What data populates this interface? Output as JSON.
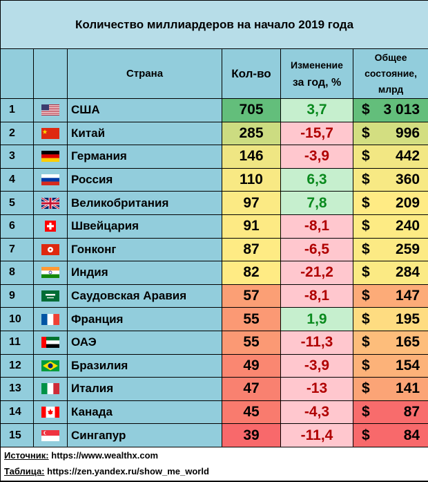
{
  "chart_data": {
    "type": "table",
    "title": "Количество миллиардеров на начало 2019 года",
    "columns": {
      "country": "Страна",
      "count": "Кол-во",
      "change_line1": "Изменение",
      "change_line2": "за год, %",
      "wealth_line1": "Общее",
      "wealth_line2": "состояние,",
      "wealth_line3": "млрд"
    },
    "currency_symbol": "$",
    "rows": [
      {
        "rank": "1",
        "flag": "usa-flag",
        "country": "США",
        "count": "705",
        "change": "3,7",
        "wealth": "3 013"
      },
      {
        "rank": "2",
        "flag": "china-flag",
        "country": "Китай",
        "count": "285",
        "change": "-15,7",
        "wealth": "996"
      },
      {
        "rank": "3",
        "flag": "germany-flag",
        "country": "Германия",
        "count": "146",
        "change": "-3,9",
        "wealth": "442"
      },
      {
        "rank": "4",
        "flag": "russia-flag",
        "country": "Россия",
        "count": "110",
        "change": "6,3",
        "wealth": "360"
      },
      {
        "rank": "5",
        "flag": "uk-flag",
        "country": "Великобритания",
        "count": "97",
        "change": "7,8",
        "wealth": "209"
      },
      {
        "rank": "6",
        "flag": "switzerland-flag",
        "country": "Швейцария",
        "count": "91",
        "change": "-8,1",
        "wealth": "240"
      },
      {
        "rank": "7",
        "flag": "hongkong-flag",
        "country": "Гонконг",
        "count": "87",
        "change": "-6,5",
        "wealth": "259"
      },
      {
        "rank": "8",
        "flag": "india-flag",
        "country": "Индия",
        "count": "82",
        "change": "-21,2",
        "wealth": "284"
      },
      {
        "rank": "9",
        "flag": "saudi-arabia-flag",
        "country": "Саудовская Аравия",
        "count": "57",
        "change": "-8,1",
        "wealth": "147"
      },
      {
        "rank": "10",
        "flag": "france-flag",
        "country": "Франция",
        "count": "55",
        "change": "1,9",
        "wealth": "195"
      },
      {
        "rank": "11",
        "flag": "uae-flag",
        "country": "ОАЭ",
        "count": "55",
        "change": "-11,3",
        "wealth": "165"
      },
      {
        "rank": "12",
        "flag": "brazil-flag",
        "country": "Бразилия",
        "count": "49",
        "change": "-3,9",
        "wealth": "154"
      },
      {
        "rank": "13",
        "flag": "italy-flag",
        "country": "Италия",
        "count": "47",
        "change": "-13",
        "wealth": "141"
      },
      {
        "rank": "14",
        "flag": "canada-flag",
        "country": "Канада",
        "count": "45",
        "change": "-4,3",
        "wealth": "87"
      },
      {
        "rank": "15",
        "flag": "singapore-flag",
        "country": "Сингапур",
        "count": "39",
        "change": "-11,4",
        "wealth": "84"
      }
    ]
  },
  "footer": {
    "source_label": "Источник:",
    "source_value": "https://www.wealthx.com",
    "table_label": "Таблица:",
    "table_value": "https://zen.yandex.ru/show_me_world"
  },
  "colors": {
    "header_bg": "#92cddc",
    "title_bg": "#b7dde8",
    "positive_text": "#0a8a1e",
    "negative_text": "#b00000",
    "positive_change_bg": "#c6efce",
    "negative_change_bg": "#ffc7ce",
    "scale_high": "#63be7b",
    "scale_mid": "#ffeb84",
    "scale_low": "#f8696b"
  }
}
